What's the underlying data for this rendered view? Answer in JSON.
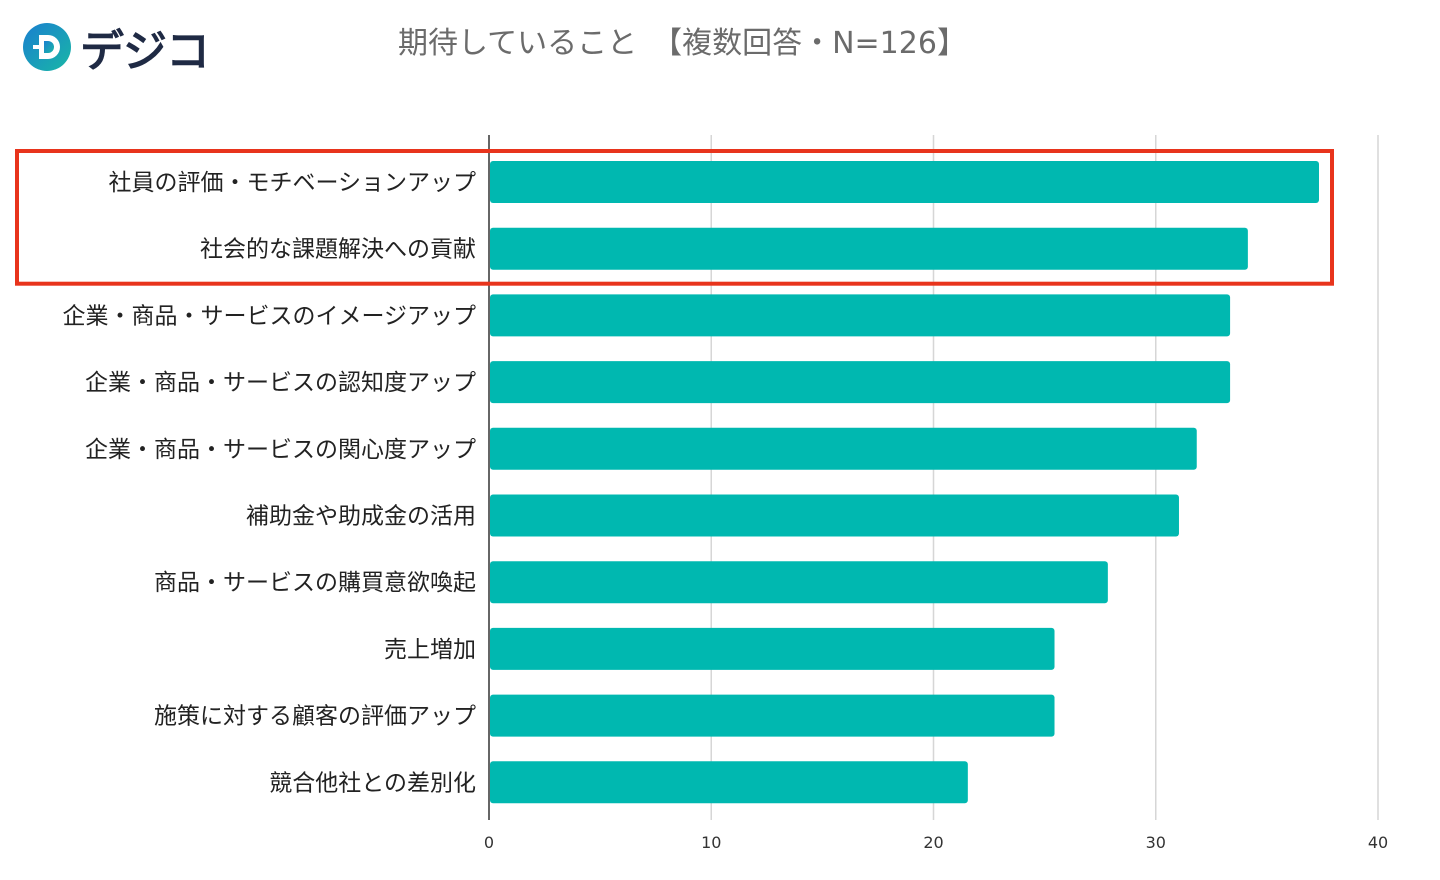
{
  "logo": {
    "text": "デジコ",
    "icon": "logo-d-icon",
    "colors": [
      "#1a7fd0",
      "#19b7a6"
    ]
  },
  "title": "期待していること　【複数回答・N=126】",
  "chart_data": {
    "type": "bar",
    "orientation": "horizontal",
    "title": "期待していること　【複数回答・N=126】",
    "categories": [
      "社員の評価・モチベーションアップ",
      "社会的な課題解決への貢献",
      "企業・商品・サービスのイメージアップ",
      "企業・商品・サービスの認知度アップ",
      "企業・商品・サービスの関心度アップ",
      "補助金や助成金の活用",
      "商品・サービスの購買意欲喚起",
      "売上増加",
      "施策に対する顧客の評価アップ",
      "競合他社との差別化"
    ],
    "values": [
      37.3,
      34.1,
      33.3,
      33.3,
      31.8,
      31.0,
      27.8,
      25.4,
      25.4,
      21.5
    ],
    "xlim": [
      0,
      40
    ],
    "xticks": [
      "0",
      "10",
      "20",
      "30",
      "40"
    ],
    "grid": true,
    "bar_color": "#00b8b0",
    "highlight_color": "#e8341c",
    "highlighted_categories": [
      0,
      1
    ],
    "xlabel": "",
    "ylabel": ""
  }
}
